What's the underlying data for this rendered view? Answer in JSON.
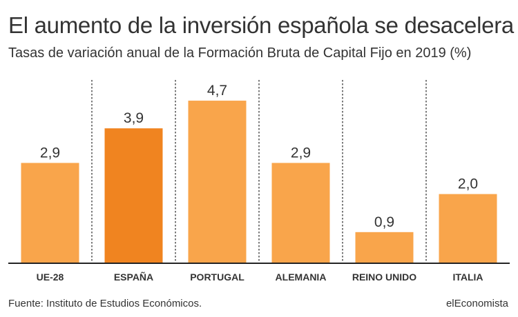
{
  "header": {
    "title": "El aumento de la inversión española se desacelera",
    "subtitle": "Tasas de variación anual de la Formación Bruta de Capital Fijo en 2019 (%)"
  },
  "footer": {
    "source": "Fuente: Instituto de Estudios Económicos.",
    "brand": "elEconomista"
  },
  "colors": {
    "bar": "#F9A54B",
    "highlight": "#F08420",
    "axis": "#222222",
    "divider": "#333333"
  },
  "chart_data": {
    "type": "bar",
    "title": "El aumento de la inversión española se desacelera",
    "subtitle": "Tasas de variación anual de la Formación Bruta de Capital Fijo en 2019 (%)",
    "categories": [
      "UE-28",
      "ESPAÑA",
      "PORTUGAL",
      "ALEMANIA",
      "REINO UNIDO",
      "ITALIA"
    ],
    "values": [
      2.9,
      3.9,
      4.7,
      2.9,
      0.9,
      2.0
    ],
    "value_labels": [
      "2,9",
      "3,9",
      "4,7",
      "2,9",
      "0,9",
      "2,0"
    ],
    "highlight": "ESPAÑA",
    "xlabel": "",
    "ylabel": "",
    "ylim": [
      0,
      5
    ],
    "grid": false,
    "legend": "none"
  }
}
